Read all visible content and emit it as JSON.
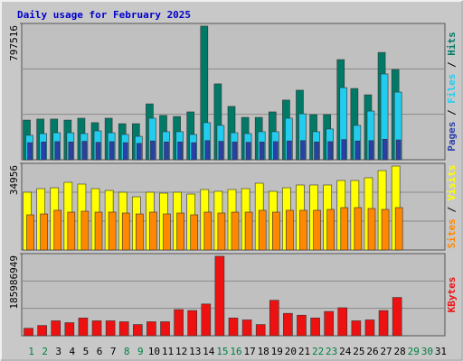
{
  "chart_data": [
    {
      "type": "bar",
      "title": "Daily usage for February 2025",
      "legend_separator": " / ",
      "ylim": [
        0,
        797516
      ],
      "yticks": [
        797516
      ],
      "series": [
        {
          "name": "Hits",
          "color": "#007a66",
          "values": [
            232000,
            238000,
            238000,
            232000,
            243000,
            217000,
            243000,
            211000,
            211000,
            327000,
            259000,
            253000,
            280000,
            782000,
            444000,
            312000,
            248000,
            248000,
            280000,
            349000,
            407000,
            264000,
            264000,
            586000,
            417000,
            380000,
            628000,
            528000,
            null,
            null,
            null
          ]
        },
        {
          "name": "Files",
          "color": "#22ccee",
          "values": [
            143000,
            153000,
            158000,
            158000,
            153000,
            169000,
            158000,
            148000,
            137000,
            243000,
            164000,
            164000,
            148000,
            217000,
            201000,
            158000,
            153000,
            164000,
            164000,
            243000,
            269000,
            164000,
            180000,
            422000,
            201000,
            285000,
            502000,
            396000,
            null,
            null,
            null
          ]
        },
        {
          "name": "Pages",
          "color": "#2a3fa8",
          "values": [
            100000,
            104000,
            106000,
            104000,
            108000,
            102000,
            106000,
            100000,
            96000,
            110000,
            104000,
            104000,
            100000,
            112000,
            108000,
            104000,
            102000,
            104000,
            106000,
            110000,
            112000,
            104000,
            106000,
            118000,
            110000,
            112000,
            120000,
            116000,
            null,
            null,
            null
          ]
        }
      ]
    },
    {
      "type": "bar",
      "legend_separator": " / ",
      "ylim": [
        0,
        34956
      ],
      "yticks": [
        34956
      ],
      "series": [
        {
          "name": "Visits",
          "color": "#ffff00",
          "values": [
            23300,
            24760,
            25120,
            27310,
            26580,
            24760,
            24030,
            23300,
            21480,
            23300,
            22940,
            23300,
            22570,
            24400,
            23670,
            24400,
            24760,
            26940,
            23670,
            25120,
            26220,
            26220,
            26220,
            28040,
            28040,
            29130,
            32040,
            33860,
            null,
            null,
            null
          ]
        },
        {
          "name": "Sites",
          "color": "#ff8800",
          "values": [
            14200,
            14560,
            16020,
            15290,
            15660,
            15290,
            15290,
            14930,
            14560,
            15290,
            14560,
            14930,
            14200,
            15290,
            14930,
            15290,
            15290,
            16020,
            15290,
            16020,
            16020,
            16020,
            16380,
            17110,
            17110,
            16750,
            16380,
            17110,
            null,
            null,
            null
          ]
        }
      ]
    },
    {
      "type": "bar",
      "ylim": [
        0,
        185986949
      ],
      "yticks": [
        185986949
      ],
      "categories": [
        "1",
        "2",
        "3",
        "4",
        "5",
        "6",
        "7",
        "8",
        "9",
        "10",
        "11",
        "12",
        "13",
        "14",
        "15",
        "16",
        "17",
        "18",
        "19",
        "20",
        "21",
        "22",
        "23",
        "24",
        "25",
        "26",
        "27",
        "28",
        "29",
        "30",
        "31"
      ],
      "category_colors": [
        "#008040",
        "#008040",
        "#000000",
        "#000000",
        "#000000",
        "#000000",
        "#000000",
        "#008040",
        "#008040",
        "#000000",
        "#000000",
        "#000000",
        "#000000",
        "#000000",
        "#008040",
        "#008040",
        "#000000",
        "#000000",
        "#000000",
        "#000000",
        "#000000",
        "#008040",
        "#008040",
        "#000000",
        "#000000",
        "#000000",
        "#000000",
        "#000000",
        "#008040",
        "#008040",
        "#000000"
      ],
      "series": [
        {
          "name": "KBytes",
          "color": "#ee1111",
          "values": [
            16900000,
            23200000,
            33800000,
            29600000,
            40200000,
            33800000,
            33800000,
            31700000,
            25400000,
            31700000,
            31700000,
            59200000,
            57100000,
            71900000,
            179900000,
            40200000,
            35900000,
            25400000,
            80300000,
            50700000,
            46500000,
            40200000,
            55000000,
            63400000,
            33800000,
            35900000,
            57100000,
            86700000,
            null,
            null,
            null
          ]
        }
      ]
    }
  ]
}
